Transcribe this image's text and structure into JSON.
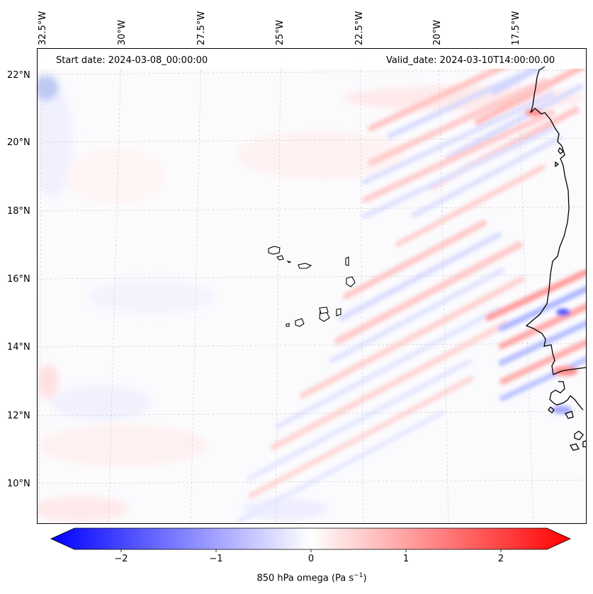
{
  "map": {
    "lon_labels": [
      "32.5°W",
      "30°W",
      "27.5°W",
      "25°W",
      "22.5°W",
      "20°W",
      "17.5°W"
    ],
    "lat_labels": [
      "22°N",
      "20°N",
      "18°N",
      "16°N",
      "14°N",
      "12°N",
      "10°N"
    ],
    "start_date": "Start date: 2024-03-08_00:00:00",
    "valid_date": "Valid_date: 2024-03-10T14:00:00.00",
    "variable": "850 hPa omega",
    "units": "(Pa s",
    "units_exp": "−1",
    "units_close": ")"
  },
  "colorbar": {
    "ticks": [
      "−2",
      "−1",
      "0",
      "1",
      "2"
    ],
    "tick_values": [
      -2,
      -1,
      0,
      1,
      2
    ],
    "range": [
      -2.5,
      2.5
    ],
    "colors": {
      "low": "#0000ff",
      "mid": "#ffffff",
      "high": "#ff0000"
    }
  }
}
